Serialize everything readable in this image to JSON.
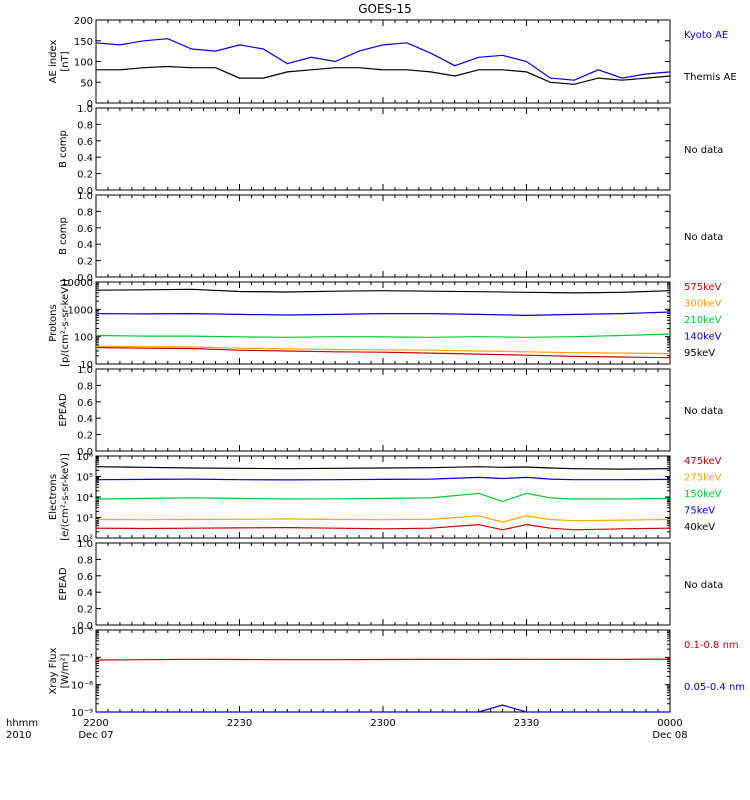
{
  "title": "GOES-15",
  "colors": {
    "black": "#000000",
    "blue": "#0000dd",
    "green": "#00cc33",
    "orange": "#ffa500",
    "red": "#cc0000"
  },
  "time_axis": {
    "row_label": "hhmm",
    "year_label": "2010",
    "ticks": [
      {
        "time": "2200",
        "date": "Dec 07"
      },
      {
        "time": "2230",
        "date": ""
      },
      {
        "time": "2300",
        "date": ""
      },
      {
        "time": "2330",
        "date": ""
      },
      {
        "time": "0000",
        "date": "Dec 08"
      }
    ]
  },
  "chart_data": [
    {
      "id": "ae",
      "type": "line",
      "scale": "linear",
      "ylim": [
        0,
        200
      ],
      "ylabel": [
        "AE index",
        "[nT]"
      ],
      "yticks": [
        "0",
        "50",
        "100",
        "150",
        "200"
      ],
      "x_minutes": [
        0,
        5,
        10,
        15,
        20,
        25,
        30,
        35,
        40,
        45,
        50,
        55,
        60,
        65,
        70,
        75,
        80,
        85,
        90,
        95,
        100,
        105,
        110,
        115,
        120
      ],
      "series": [
        {
          "name": "Kyoto AE",
          "color": "blue",
          "values": [
            145,
            140,
            150,
            155,
            130,
            125,
            140,
            130,
            95,
            110,
            100,
            125,
            140,
            145,
            120,
            90,
            110,
            115,
            100,
            60,
            55,
            80,
            60,
            70,
            75
          ]
        },
        {
          "name": "Themis AE",
          "color": "black",
          "values": [
            80,
            80,
            85,
            88,
            85,
            85,
            60,
            60,
            75,
            80,
            85,
            85,
            80,
            80,
            75,
            65,
            80,
            80,
            75,
            50,
            45,
            60,
            55,
            60,
            65
          ]
        }
      ]
    },
    {
      "id": "bcomp1",
      "type": "line",
      "scale": "linear",
      "ylim": [
        0,
        1
      ],
      "ylabel": [
        "B comp"
      ],
      "yticks": [
        "0.0",
        "0.2",
        "0.4",
        "0.6",
        "0.8",
        "1.0"
      ],
      "note": "No data"
    },
    {
      "id": "bcomp2",
      "type": "line",
      "scale": "linear",
      "ylim": [
        0,
        1
      ],
      "ylabel": [
        "B comp"
      ],
      "yticks": [
        "0.0",
        "0.2",
        "0.4",
        "0.6",
        "0.8",
        "1.0"
      ],
      "note": "No data"
    },
    {
      "id": "protons",
      "type": "line",
      "scale": "log",
      "ylim": [
        10,
        10000
      ],
      "ylabel": [
        "Protons",
        "[p/(cm²-s-sr-keV)]"
      ],
      "yticks": [
        "10",
        "100",
        "1000",
        "10000"
      ],
      "x_minutes": [
        0,
        10,
        20,
        30,
        40,
        50,
        60,
        70,
        80,
        90,
        100,
        110,
        120
      ],
      "series": [
        {
          "name": "575keV",
          "color": "red",
          "values": [
            40,
            38,
            37,
            32,
            30,
            28,
            27,
            25,
            23,
            21,
            19,
            18,
            17
          ]
        },
        {
          "name": "300keV",
          "color": "orange",
          "values": [
            45,
            43,
            42,
            38,
            36,
            34,
            33,
            32,
            30,
            28,
            26,
            25,
            24
          ]
        },
        {
          "name": "210keV",
          "color": "green",
          "values": [
            110,
            105,
            105,
            98,
            95,
            100,
            98,
            95,
            100,
            95,
            100,
            110,
            125
          ]
        },
        {
          "name": "140keV",
          "color": "blue",
          "values": [
            700,
            680,
            700,
            650,
            620,
            650,
            700,
            700,
            650,
            600,
            650,
            700,
            800
          ]
        },
        {
          "name": "95keV",
          "color": "black",
          "values": [
            5000,
            5200,
            5400,
            4500,
            4300,
            4600,
            4800,
            4600,
            4400,
            4200,
            4000,
            4200,
            4800
          ]
        }
      ]
    },
    {
      "id": "epead1",
      "type": "line",
      "scale": "linear",
      "ylim": [
        0,
        1
      ],
      "ylabel": [
        "EPEAD"
      ],
      "yticks": [
        "0.0",
        "0.2",
        "0.4",
        "0.6",
        "0.8",
        "1.0"
      ],
      "note": "No data"
    },
    {
      "id": "electrons",
      "type": "line",
      "scale": "log",
      "ylim": [
        100,
        1000000
      ],
      "ylabel": [
        "Electrons",
        "[e/(cm²-s-sr-keV)]"
      ],
      "yticks": [
        "10²",
        "10³",
        "10⁴",
        "10⁵",
        "10⁶"
      ],
      "x_minutes": [
        0,
        10,
        20,
        30,
        40,
        50,
        60,
        70,
        80,
        85,
        90,
        95,
        100,
        110,
        120
      ],
      "series": [
        {
          "name": "475keV",
          "color": "red",
          "values": [
            300,
            290,
            300,
            310,
            320,
            300,
            280,
            300,
            450,
            250,
            450,
            300,
            250,
            280,
            300
          ]
        },
        {
          "name": "275keV",
          "color": "orange",
          "values": [
            800,
            780,
            800,
            820,
            850,
            800,
            780,
            820,
            1200,
            600,
            1200,
            800,
            700,
            750,
            800
          ]
        },
        {
          "name": "150keV",
          "color": "green",
          "values": [
            8000,
            8500,
            9000,
            8500,
            8000,
            8200,
            8500,
            9000,
            15000,
            6000,
            15000,
            9000,
            8000,
            8000,
            8500
          ]
        },
        {
          "name": "75keV",
          "color": "blue",
          "values": [
            70000,
            72000,
            75000,
            70000,
            68000,
            70000,
            72000,
            75000,
            90000,
            80000,
            90000,
            75000,
            70000,
            70000,
            72000
          ]
        },
        {
          "name": "40keV",
          "color": "black",
          "values": [
            300000,
            280000,
            260000,
            250000,
            240000,
            250000,
            260000,
            270000,
            300000,
            280000,
            290000,
            260000,
            240000,
            230000,
            240000
          ]
        }
      ]
    },
    {
      "id": "epead2",
      "type": "line",
      "scale": "linear",
      "ylim": [
        0,
        1
      ],
      "ylabel": [
        "EPEAD"
      ],
      "yticks": [
        "0.0",
        "0.2",
        "0.4",
        "0.6",
        "0.8",
        "1.0"
      ],
      "note": "No data"
    },
    {
      "id": "xray",
      "type": "line",
      "scale": "log",
      "ylim": [
        1e-09,
        1e-06
      ],
      "ylabel": [
        "Xray Flux",
        "[W/m²]"
      ],
      "yticks": [
        "10⁻⁹",
        "10⁻⁸",
        "10⁻⁷",
        "10⁻⁶"
      ],
      "x_minutes": [
        0,
        10,
        20,
        30,
        40,
        50,
        60,
        70,
        80,
        85,
        90,
        100,
        110,
        120
      ],
      "series": [
        {
          "name": "0.1-0.8 nm",
          "color": "red",
          "values": [
            8e-08,
            8.2e-08,
            8.5e-08,
            8.3e-08,
            8.2e-08,
            8.2e-08,
            8.3e-08,
            8.4e-08,
            8.5e-08,
            8.4e-08,
            8.5e-08,
            8.4e-08,
            8.5e-08,
            8.6e-08
          ]
        },
        {
          "name": "0.05-0.4 nm",
          "color": "blue",
          "values": [
            1e-09,
            1e-09,
            1e-09,
            1e-09,
            1e-09,
            1e-09,
            1e-09,
            1e-09,
            1e-09,
            1.8e-09,
            1e-09,
            1e-09,
            1e-09,
            1e-09
          ]
        }
      ]
    }
  ]
}
